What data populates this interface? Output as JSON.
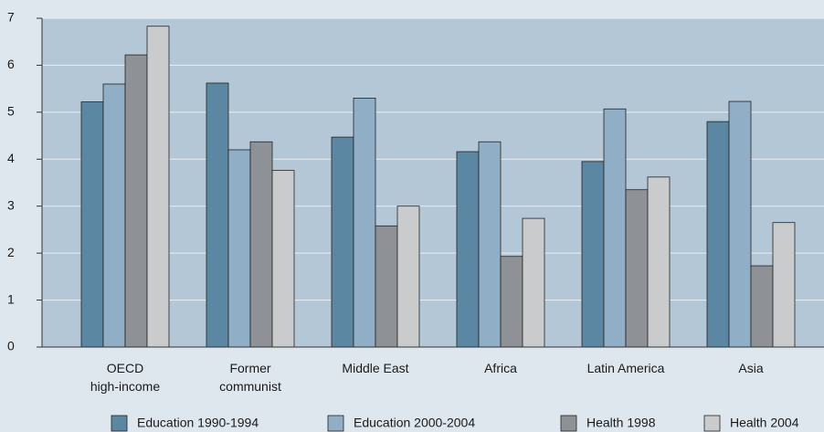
{
  "chart_data": {
    "type": "bar",
    "categories": [
      "OECD\nhigh-income",
      "Former\ncommunist",
      "Middle East",
      "Africa",
      "Latin America",
      "Asia"
    ],
    "series": [
      {
        "name": "Education 1990-1994",
        "color": "#5b87a3",
        "values": [
          5.22,
          5.62,
          4.47,
          4.16,
          3.95,
          4.8
        ]
      },
      {
        "name": "Education 2000-2004",
        "color": "#90aec5",
        "values": [
          5.6,
          4.2,
          5.3,
          4.37,
          5.07,
          5.23
        ]
      },
      {
        "name": "Health 1998",
        "color": "#8e9296",
        "values": [
          6.22,
          4.37,
          2.58,
          1.93,
          3.35,
          1.73
        ]
      },
      {
        "name": "Health 2004",
        "color": "#c9cbcd",
        "values": [
          6.83,
          3.76,
          3.0,
          2.74,
          3.62,
          2.65
        ]
      }
    ],
    "ylim": [
      0,
      7
    ],
    "yticks": [
      0,
      1,
      2,
      3,
      4,
      5,
      6,
      7
    ],
    "grid": true
  }
}
